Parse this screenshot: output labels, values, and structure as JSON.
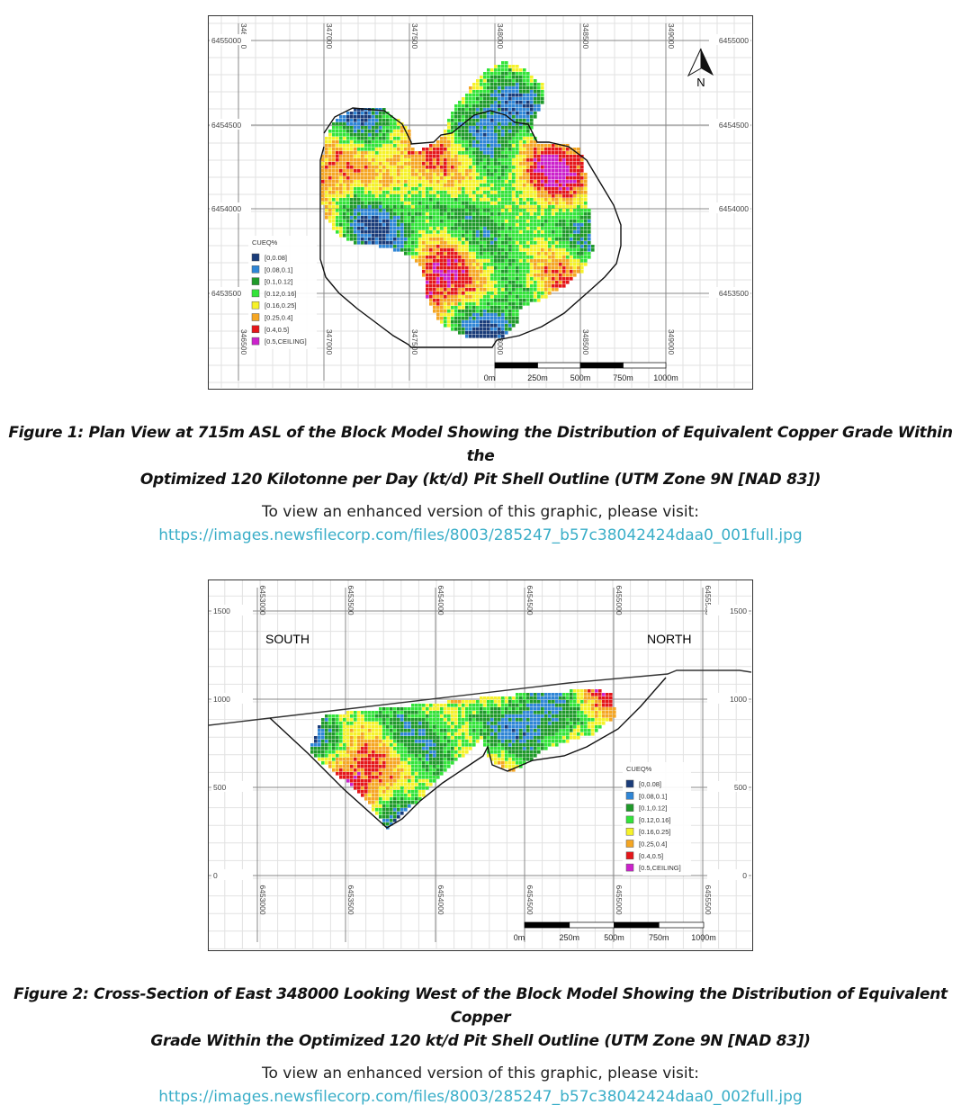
{
  "palette": [
    "#1a3c7a",
    "#2f86d6",
    "#1f9a2a",
    "#33e43a",
    "#f6f22a",
    "#f5a623",
    "#e5161a",
    "#cc22cc"
  ],
  "legend": {
    "title": "CUEQ%",
    "items": [
      "[0,0.08]",
      "[0.08,0.1]",
      "[0.1,0.12]",
      "[0.12,0.16]",
      "[0.16,0.25]",
      "[0.25,0.4]",
      "[0.4,0.5]",
      "[0.5,CEILING]"
    ]
  },
  "scale_bar": [
    "0m",
    "250m",
    "500m",
    "750m",
    "1000m"
  ],
  "figure1": {
    "north_label": "N",
    "eastings_top": [
      "346500",
      "347000",
      "347500",
      "348000",
      "348500",
      "349000"
    ],
    "eastings_bottom": [
      "346500",
      "347000",
      "347500",
      "348000",
      "348500",
      "349000"
    ],
    "northings": [
      "6455000",
      "6454500",
      "6454000",
      "6453500"
    ],
    "caption_line1": "Figure 1: Plan View at 715m ASL of the Block Model Showing the Distribution of Equivalent Copper Grade Within the",
    "caption_line2": "Optimized 120 Kilotonne per Day (kt/d) Pit Shell Outline (UTM Zone 9N [NAD 83])",
    "visit_text": "To view an enhanced version of this graphic, please visit:",
    "link": "https://images.newsfilecorp.com/files/8003/285247_b57c38042424daa0_001full.jpg"
  },
  "figure2": {
    "south_label": "SOUTH",
    "north_label": "NORTH",
    "northings_top": [
      "6453000",
      "6453500",
      "6454000",
      "6454500",
      "6455000",
      "6455500"
    ],
    "northings_bottom": [
      "6453000",
      "6453500",
      "6454000",
      "6454500",
      "6455000",
      "6455500"
    ],
    "elevations": [
      "1500",
      "1000",
      "500",
      "0"
    ],
    "caption_line1": "Figure 2: Cross-Section of East 348000 Looking West of the Block Model Showing the Distribution of Equivalent Copper",
    "caption_line2": "Grade Within the Optimized 120 kt/d Pit Shell Outline (UTM Zone 9N [NAD 83])",
    "visit_text": "To view an enhanced version of this graphic, please visit:",
    "link": "https://images.newsfilecorp.com/files/8003/285247_b57c38042424daa0_002full.jpg"
  }
}
